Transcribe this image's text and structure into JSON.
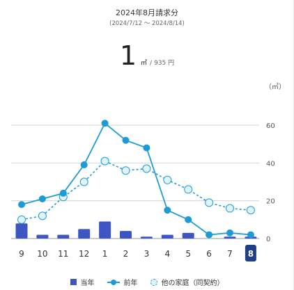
{
  "header": {
    "title": "2024年8月請求分",
    "period": "(2024/7/12 〜 2024/8/14)"
  },
  "usage": {
    "value": "1",
    "unit": "㎥",
    "separator": "/",
    "price": "935 円"
  },
  "chart_data": {
    "type": "bar",
    "y_unit_label": "（㎥）",
    "categories": [
      "9",
      "10",
      "11",
      "12",
      "1",
      "2",
      "3",
      "4",
      "5",
      "6",
      "7",
      "8"
    ],
    "selected_category": "8",
    "ylim": [
      0,
      60
    ],
    "yticks": [
      "0",
      "20",
      "40",
      "60"
    ],
    "grid": true,
    "legend_position": "bottom",
    "series": [
      {
        "name": "当年",
        "type": "bar",
        "color": "#3d56c4",
        "values": [
          8,
          2,
          2,
          5,
          9,
          4,
          1,
          2,
          3,
          0,
          1,
          1
        ]
      },
      {
        "name": "前年",
        "type": "line",
        "color": "#1d9bd6",
        "values": [
          18,
          21,
          24,
          39,
          61,
          52,
          48,
          15,
          10,
          2,
          3,
          2
        ]
      },
      {
        "name": "他の家庭（同契約）",
        "type": "line-dashed",
        "color": "#1d9bd6",
        "values": [
          10,
          12,
          22,
          30,
          41,
          36,
          37,
          31,
          26,
          19,
          16,
          15
        ]
      }
    ]
  }
}
